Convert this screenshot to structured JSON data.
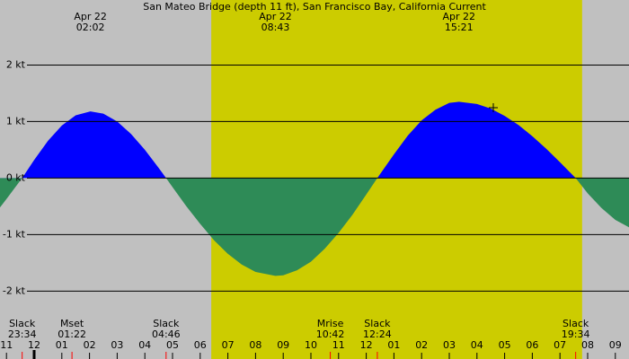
{
  "chart_data": {
    "type": "area",
    "title": "San Mateo Bridge (depth 11 ft), San Francisco Bay, California Current",
    "background": "#c0c0c0",
    "daylight": {
      "color": "#cccc00",
      "range": [
        6.4,
        19.8
      ]
    },
    "xlim": [
      -1.234,
      21.494
    ],
    "ylim": [
      -3.2,
      3.15
    ],
    "yticks": [
      {
        "value": 2,
        "label": "2 kt"
      },
      {
        "value": 1,
        "label": "1 kt"
      },
      {
        "value": 0,
        "label": "0 kt"
      },
      {
        "value": -1,
        "label": "-1 kt"
      },
      {
        "value": -2,
        "label": "-2 kt"
      }
    ],
    "grid": true,
    "xticks": [
      {
        "value": -1,
        "label": "11"
      },
      {
        "value": 0,
        "label": "12"
      },
      {
        "value": 1,
        "label": "01"
      },
      {
        "value": 2,
        "label": "02"
      },
      {
        "value": 3,
        "label": "03"
      },
      {
        "value": 4,
        "label": "04"
      },
      {
        "value": 5,
        "label": "05"
      },
      {
        "value": 6,
        "label": "06"
      },
      {
        "value": 7,
        "label": "07"
      },
      {
        "value": 8,
        "label": "08"
      },
      {
        "value": 9,
        "label": "09"
      },
      {
        "value": 10,
        "label": "10"
      },
      {
        "value": 11,
        "label": "11"
      },
      {
        "value": 12,
        "label": "12"
      },
      {
        "value": 13,
        "label": "01"
      },
      {
        "value": 14,
        "label": "02"
      },
      {
        "value": 15,
        "label": "03"
      },
      {
        "value": 16,
        "label": "04"
      },
      {
        "value": 17,
        "label": "05"
      },
      {
        "value": 18,
        "label": "06"
      },
      {
        "value": 19,
        "label": "07"
      },
      {
        "value": 20,
        "label": "08"
      },
      {
        "value": 21,
        "label": "09"
      }
    ],
    "midnight": 0,
    "flood_color": "#0000ff",
    "ebb_color": "#2e8b57",
    "x": [
      -1.234,
      -1,
      -0.433,
      0,
      0.5,
      1,
      1.5,
      2.033,
      2.5,
      3,
      3.5,
      4,
      4.5,
      4.767,
      5,
      5.5,
      6,
      6.5,
      7,
      7.5,
      8,
      8.717,
      9,
      9.5,
      10,
      10.5,
      11,
      11.5,
      12,
      12.4,
      13,
      13.5,
      14,
      14.5,
      15,
      15.35,
      16,
      16.5,
      17,
      17.5,
      18,
      18.5,
      19,
      19.567,
      20,
      20.5,
      21,
      21.494
    ],
    "values": [
      -0.52,
      -0.37,
      0,
      0.32,
      0.66,
      0.93,
      1.11,
      1.18,
      1.14,
      1.0,
      0.78,
      0.5,
      0.18,
      0,
      -0.16,
      -0.5,
      -0.81,
      -1.1,
      -1.34,
      -1.53,
      -1.66,
      -1.73,
      -1.72,
      -1.63,
      -1.48,
      -1.25,
      -0.97,
      -0.65,
      -0.29,
      0,
      0.42,
      0.75,
      1.02,
      1.21,
      1.33,
      1.35,
      1.31,
      1.23,
      1.1,
      0.94,
      0.74,
      0.52,
      0.28,
      0,
      -0.27,
      -0.53,
      -0.74,
      -0.87
    ],
    "peaks": [
      {
        "date": "Apr 22",
        "time": "02:02",
        "x": 2.033
      },
      {
        "date": "Apr 22",
        "time": "08:43",
        "x": 8.717
      },
      {
        "date": "Apr 22",
        "time": "15:21",
        "x": 15.35
      }
    ],
    "events": [
      {
        "label": "Slack",
        "time": "23:34",
        "x": -0.433
      },
      {
        "label": "Mset",
        "time": "01:22",
        "x": 1.367
      },
      {
        "label": "Slack",
        "time": "04:46",
        "x": 4.767
      },
      {
        "label": "Mrise",
        "time": "10:42",
        "x": 10.7
      },
      {
        "label": "Slack",
        "time": "12:24",
        "x": 12.4
      },
      {
        "label": "Slack",
        "time": "19:34",
        "x": 19.567
      }
    ],
    "event_color": "#ff0000"
  }
}
